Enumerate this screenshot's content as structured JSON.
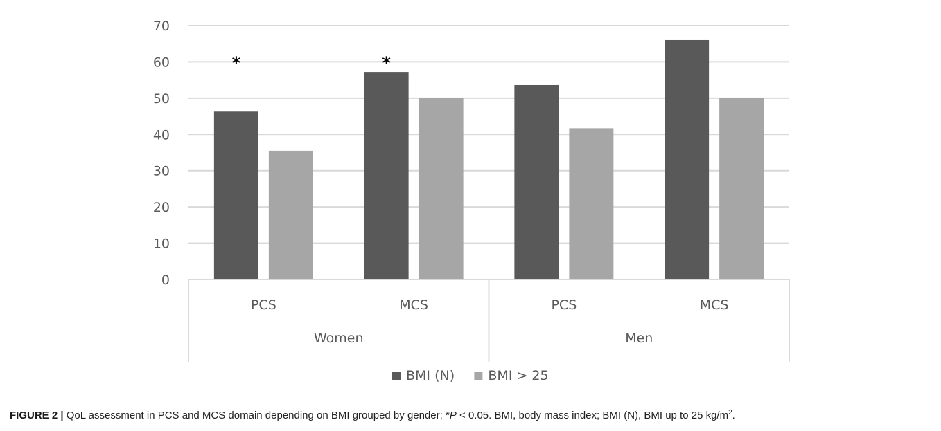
{
  "chart_data": {
    "type": "bar",
    "title": "",
    "xlabel": "",
    "ylabel": "",
    "ylim": [
      0,
      70
    ],
    "yticks": [
      0,
      10,
      20,
      30,
      40,
      50,
      60,
      70
    ],
    "grid": true,
    "legend_position": "bottom-center",
    "groups": [
      {
        "label": "Women",
        "categories": [
          "PCS",
          "MCS"
        ]
      },
      {
        "label": "Men",
        "categories": [
          "PCS",
          "MCS"
        ]
      }
    ],
    "categories": [
      "PCS",
      "MCS",
      "PCS",
      "MCS"
    ],
    "series": [
      {
        "name": "BMI (N)",
        "color": "#595959",
        "values": [
          46.3,
          57.2,
          53.6,
          66.0
        ]
      },
      {
        "name": "BMI > 25",
        "color": "#a6a6a6",
        "values": [
          35.5,
          50.0,
          41.7,
          50.0
        ]
      }
    ],
    "annotations": [
      {
        "text": "*",
        "category_index": 0,
        "value": 61
      },
      {
        "text": "*",
        "category_index": 1,
        "value": 61
      }
    ]
  },
  "caption": {
    "label": "FIGURE 2 |",
    "text_before_p": " QoL assessment in PCS and MCS domain depending on BMI grouped by gender; *",
    "p_symbol": "P",
    "text_after_p": " < 0.05. BMI, body mass index; BMI (N), BMI up to 25 kg/m",
    "superscript": "2",
    "text_end": "."
  }
}
